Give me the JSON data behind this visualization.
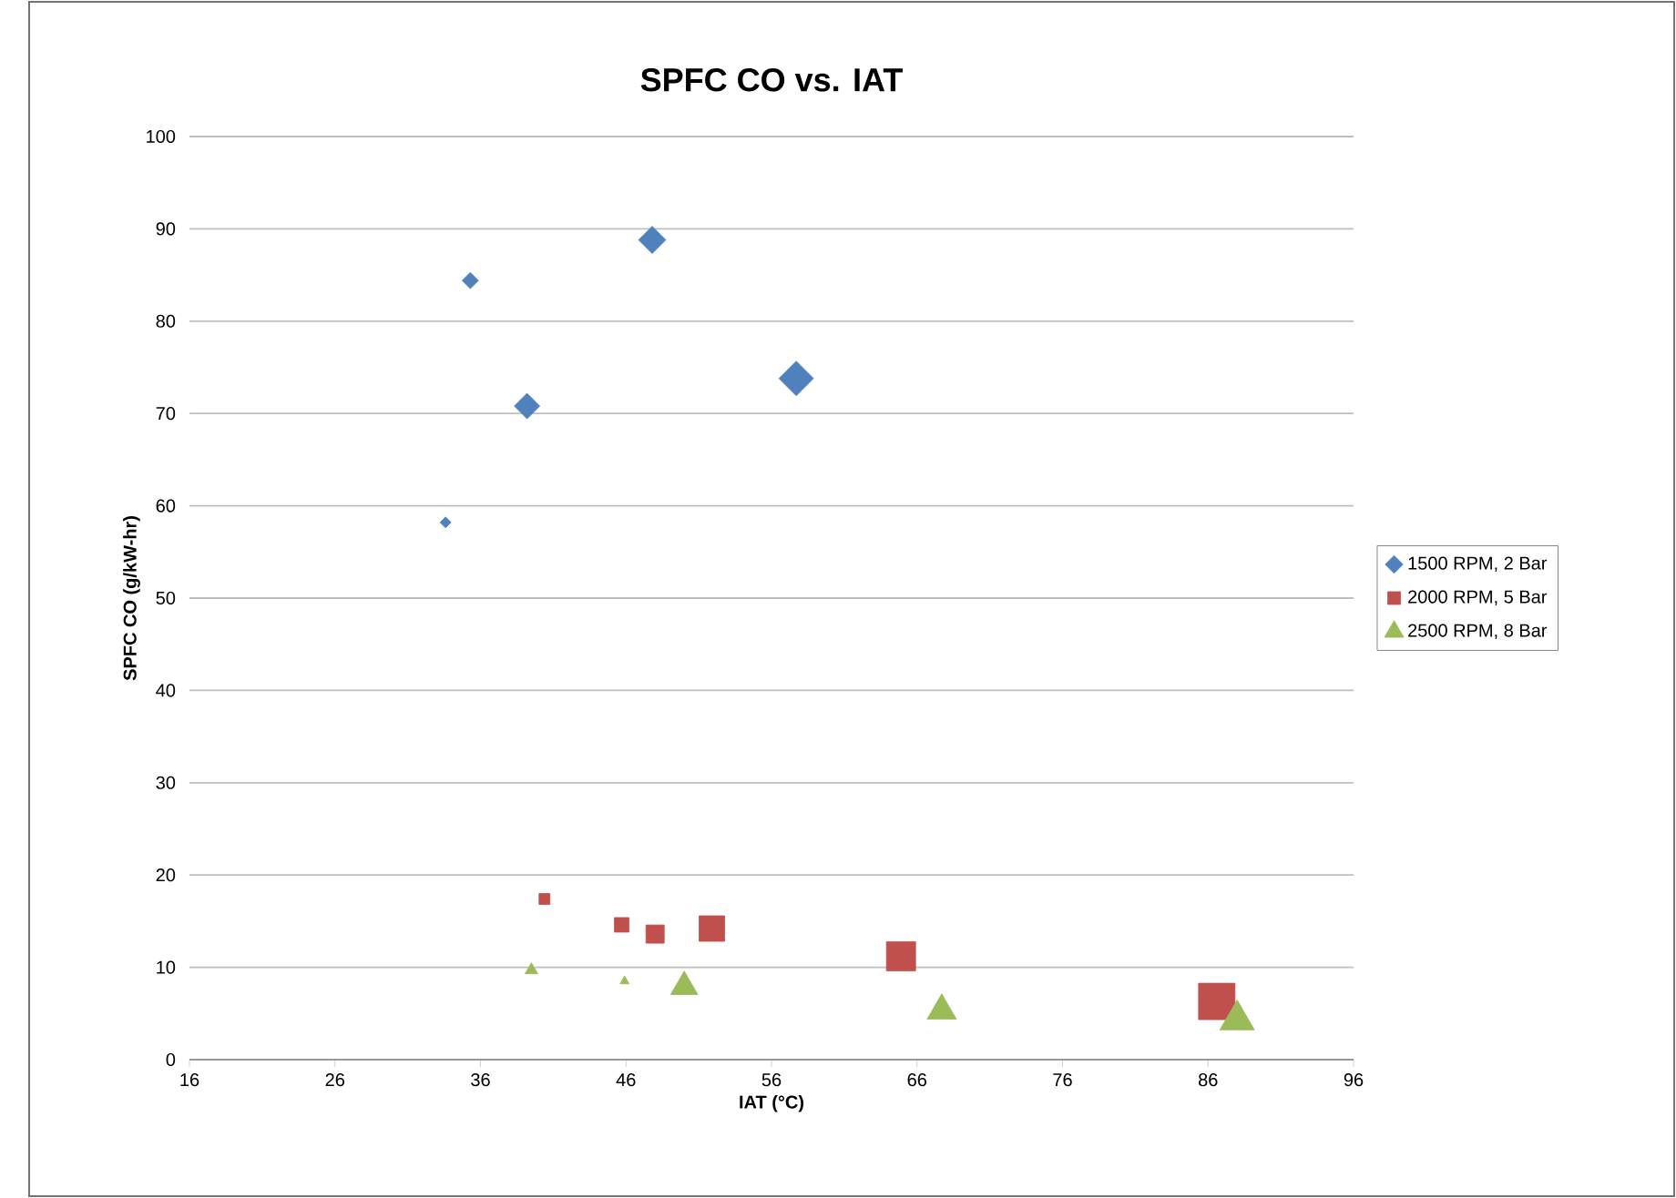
{
  "chart_data": {
    "type": "bubble",
    "title": "SPFC CO vs. IAT",
    "xlabel": "IAT (°C)",
    "ylabel": "SPFC CO (g/kW-hr)",
    "xlim": [
      16,
      96
    ],
    "xticks": [
      16,
      26,
      36,
      46,
      56,
      66,
      76,
      86,
      96
    ],
    "ylim": [
      0,
      100
    ],
    "yticks": [
      0,
      10,
      20,
      30,
      40,
      50,
      60,
      70,
      80,
      90,
      100
    ],
    "grid": "y",
    "legend": "right",
    "series": [
      {
        "name": "1500 RPM, 2 Bar",
        "color": "#4f81bd",
        "marker": "diamond",
        "x": [
          33.6,
          35.3,
          39.2,
          47.8,
          57.7
        ],
        "values": [
          58.2,
          84.4,
          70.8,
          88.8,
          73.8
        ],
        "sizes": [
          0.045,
          0.1,
          0.245,
          0.28,
          0.45
        ]
      },
      {
        "name": "2000 RPM, 5 Bar",
        "color": "#c0504d",
        "marker": "square",
        "x": [
          40.4,
          45.7,
          48.0,
          51.9,
          64.9,
          86.6
        ],
        "values": [
          17.4,
          14.6,
          13.6,
          14.2,
          11.2,
          6.3
        ],
        "sizes": [
          0.09,
          0.16,
          0.25,
          0.49,
          0.64,
          1
        ]
      },
      {
        "name": "2500 RPM, 8 Bar",
        "color": "#9bbb59",
        "marker": "triangle",
        "x": [
          39.5,
          45.9,
          50.0,
          67.7,
          88.0
        ],
        "values": [
          9.7,
          8.5,
          7.9,
          5.3,
          4.3
        ],
        "sizes": [
          0.053,
          0.027,
          0.24,
          0.28,
          0.39
        ]
      }
    ]
  }
}
